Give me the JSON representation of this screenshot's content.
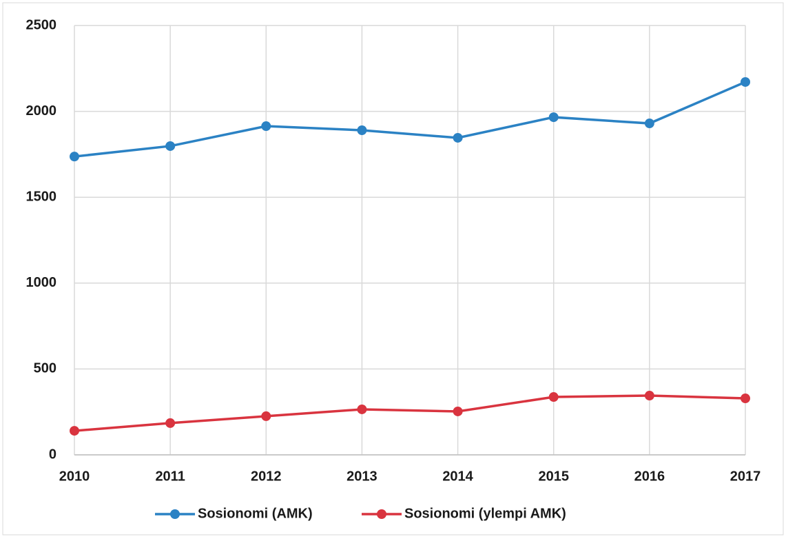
{
  "chart_data": {
    "type": "line",
    "categories": [
      "2010",
      "2011",
      "2012",
      "2013",
      "2014",
      "2015",
      "2016",
      "2017"
    ],
    "series": [
      {
        "name": "Sosionomi (AMK)",
        "color": "#2b82c4",
        "values": [
          1737,
          1798,
          1914,
          1890,
          1846,
          1966,
          1930,
          2171
        ]
      },
      {
        "name": "Sosionomi (ylempi AMK)",
        "color": "#d9343f",
        "values": [
          140,
          185,
          225,
          265,
          253,
          337,
          345,
          329
        ]
      }
    ],
    "ylim": [
      0,
      2500
    ],
    "yticks": [
      0,
      500,
      1000,
      1500,
      2000,
      2500
    ],
    "grid": true,
    "legend": "bottom"
  }
}
